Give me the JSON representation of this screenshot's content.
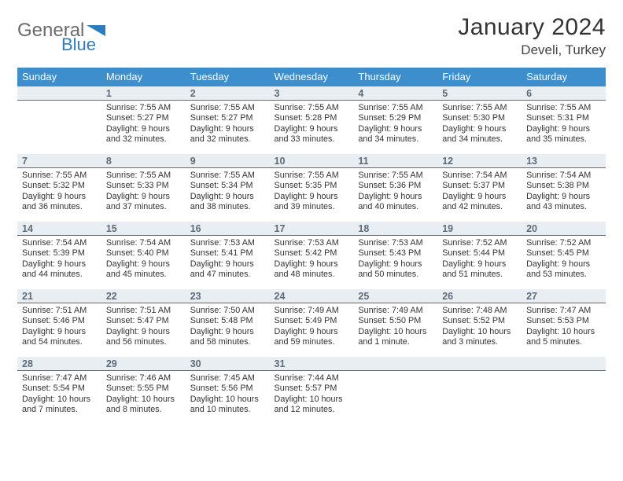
{
  "brand": {
    "name_a": "General",
    "name_b": "Blue"
  },
  "title": "January 2024",
  "location": "Develi, Turkey",
  "weekdays": [
    "Sunday",
    "Monday",
    "Tuesday",
    "Wednesday",
    "Thursday",
    "Friday",
    "Saturday"
  ],
  "colors": {
    "header_bg": "#3c8ecc",
    "header_text": "#ffffff",
    "band_bg": "#e9eef2",
    "band_border": "#4a6f92",
    "text": "#333333",
    "logo_gray": "#6b6b6b",
    "logo_blue": "#2c7dc0"
  },
  "weeks": [
    [
      {
        "n": "",
        "sunrise": "",
        "sunset": "",
        "daylight": ""
      },
      {
        "n": "1",
        "sunrise": "Sunrise: 7:55 AM",
        "sunset": "Sunset: 5:27 PM",
        "daylight": "Daylight: 9 hours and 32 minutes."
      },
      {
        "n": "2",
        "sunrise": "Sunrise: 7:55 AM",
        "sunset": "Sunset: 5:27 PM",
        "daylight": "Daylight: 9 hours and 32 minutes."
      },
      {
        "n": "3",
        "sunrise": "Sunrise: 7:55 AM",
        "sunset": "Sunset: 5:28 PM",
        "daylight": "Daylight: 9 hours and 33 minutes."
      },
      {
        "n": "4",
        "sunrise": "Sunrise: 7:55 AM",
        "sunset": "Sunset: 5:29 PM",
        "daylight": "Daylight: 9 hours and 34 minutes."
      },
      {
        "n": "5",
        "sunrise": "Sunrise: 7:55 AM",
        "sunset": "Sunset: 5:30 PM",
        "daylight": "Daylight: 9 hours and 34 minutes."
      },
      {
        "n": "6",
        "sunrise": "Sunrise: 7:55 AM",
        "sunset": "Sunset: 5:31 PM",
        "daylight": "Daylight: 9 hours and 35 minutes."
      }
    ],
    [
      {
        "n": "7",
        "sunrise": "Sunrise: 7:55 AM",
        "sunset": "Sunset: 5:32 PM",
        "daylight": "Daylight: 9 hours and 36 minutes."
      },
      {
        "n": "8",
        "sunrise": "Sunrise: 7:55 AM",
        "sunset": "Sunset: 5:33 PM",
        "daylight": "Daylight: 9 hours and 37 minutes."
      },
      {
        "n": "9",
        "sunrise": "Sunrise: 7:55 AM",
        "sunset": "Sunset: 5:34 PM",
        "daylight": "Daylight: 9 hours and 38 minutes."
      },
      {
        "n": "10",
        "sunrise": "Sunrise: 7:55 AM",
        "sunset": "Sunset: 5:35 PM",
        "daylight": "Daylight: 9 hours and 39 minutes."
      },
      {
        "n": "11",
        "sunrise": "Sunrise: 7:55 AM",
        "sunset": "Sunset: 5:36 PM",
        "daylight": "Daylight: 9 hours and 40 minutes."
      },
      {
        "n": "12",
        "sunrise": "Sunrise: 7:54 AM",
        "sunset": "Sunset: 5:37 PM",
        "daylight": "Daylight: 9 hours and 42 minutes."
      },
      {
        "n": "13",
        "sunrise": "Sunrise: 7:54 AM",
        "sunset": "Sunset: 5:38 PM",
        "daylight": "Daylight: 9 hours and 43 minutes."
      }
    ],
    [
      {
        "n": "14",
        "sunrise": "Sunrise: 7:54 AM",
        "sunset": "Sunset: 5:39 PM",
        "daylight": "Daylight: 9 hours and 44 minutes."
      },
      {
        "n": "15",
        "sunrise": "Sunrise: 7:54 AM",
        "sunset": "Sunset: 5:40 PM",
        "daylight": "Daylight: 9 hours and 45 minutes."
      },
      {
        "n": "16",
        "sunrise": "Sunrise: 7:53 AM",
        "sunset": "Sunset: 5:41 PM",
        "daylight": "Daylight: 9 hours and 47 minutes."
      },
      {
        "n": "17",
        "sunrise": "Sunrise: 7:53 AM",
        "sunset": "Sunset: 5:42 PM",
        "daylight": "Daylight: 9 hours and 48 minutes."
      },
      {
        "n": "18",
        "sunrise": "Sunrise: 7:53 AM",
        "sunset": "Sunset: 5:43 PM",
        "daylight": "Daylight: 9 hours and 50 minutes."
      },
      {
        "n": "19",
        "sunrise": "Sunrise: 7:52 AM",
        "sunset": "Sunset: 5:44 PM",
        "daylight": "Daylight: 9 hours and 51 minutes."
      },
      {
        "n": "20",
        "sunrise": "Sunrise: 7:52 AM",
        "sunset": "Sunset: 5:45 PM",
        "daylight": "Daylight: 9 hours and 53 minutes."
      }
    ],
    [
      {
        "n": "21",
        "sunrise": "Sunrise: 7:51 AM",
        "sunset": "Sunset: 5:46 PM",
        "daylight": "Daylight: 9 hours and 54 minutes."
      },
      {
        "n": "22",
        "sunrise": "Sunrise: 7:51 AM",
        "sunset": "Sunset: 5:47 PM",
        "daylight": "Daylight: 9 hours and 56 minutes."
      },
      {
        "n": "23",
        "sunrise": "Sunrise: 7:50 AM",
        "sunset": "Sunset: 5:48 PM",
        "daylight": "Daylight: 9 hours and 58 minutes."
      },
      {
        "n": "24",
        "sunrise": "Sunrise: 7:49 AM",
        "sunset": "Sunset: 5:49 PM",
        "daylight": "Daylight: 9 hours and 59 minutes."
      },
      {
        "n": "25",
        "sunrise": "Sunrise: 7:49 AM",
        "sunset": "Sunset: 5:50 PM",
        "daylight": "Daylight: 10 hours and 1 minute."
      },
      {
        "n": "26",
        "sunrise": "Sunrise: 7:48 AM",
        "sunset": "Sunset: 5:52 PM",
        "daylight": "Daylight: 10 hours and 3 minutes."
      },
      {
        "n": "27",
        "sunrise": "Sunrise: 7:47 AM",
        "sunset": "Sunset: 5:53 PM",
        "daylight": "Daylight: 10 hours and 5 minutes."
      }
    ],
    [
      {
        "n": "28",
        "sunrise": "Sunrise: 7:47 AM",
        "sunset": "Sunset: 5:54 PM",
        "daylight": "Daylight: 10 hours and 7 minutes."
      },
      {
        "n": "29",
        "sunrise": "Sunrise: 7:46 AM",
        "sunset": "Sunset: 5:55 PM",
        "daylight": "Daylight: 10 hours and 8 minutes."
      },
      {
        "n": "30",
        "sunrise": "Sunrise: 7:45 AM",
        "sunset": "Sunset: 5:56 PM",
        "daylight": "Daylight: 10 hours and 10 minutes."
      },
      {
        "n": "31",
        "sunrise": "Sunrise: 7:44 AM",
        "sunset": "Sunset: 5:57 PM",
        "daylight": "Daylight: 10 hours and 12 minutes."
      },
      {
        "n": "",
        "sunrise": "",
        "sunset": "",
        "daylight": ""
      },
      {
        "n": "",
        "sunrise": "",
        "sunset": "",
        "daylight": ""
      },
      {
        "n": "",
        "sunrise": "",
        "sunset": "",
        "daylight": ""
      }
    ]
  ]
}
